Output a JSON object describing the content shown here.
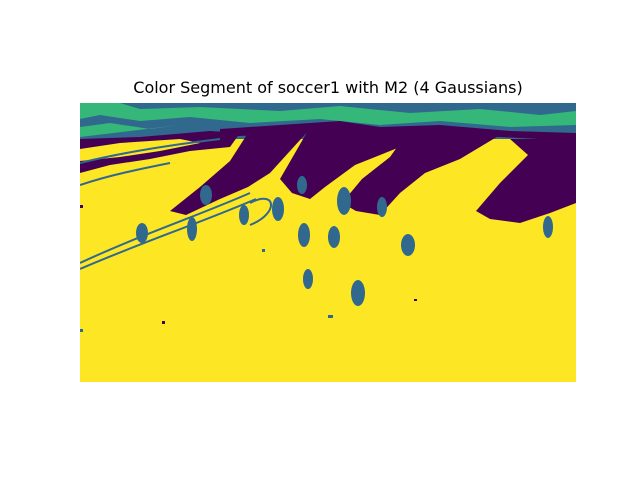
{
  "chart_data": {
    "type": "heatmap",
    "title": "Color Segment of soccer1 with M2 (4 Gaussians)",
    "axes_visible": false,
    "colormap": "viridis",
    "num_clusters": 4,
    "cluster_colors": [
      "#440154",
      "#31688e",
      "#35b779",
      "#fde725"
    ],
    "dominant_cluster": "#fde725",
    "regions": [
      {
        "name": "stands",
        "cluster_colors": [
          "#31688e",
          "#35b779"
        ]
      },
      {
        "name": "shadow-stripes",
        "cluster_color": "#440154",
        "count": 4
      },
      {
        "name": "pitch",
        "cluster_color": "#fde725"
      },
      {
        "name": "players",
        "cluster_color": "#31688e"
      },
      {
        "name": "field-lines",
        "cluster_color": "#31688e"
      }
    ]
  }
}
